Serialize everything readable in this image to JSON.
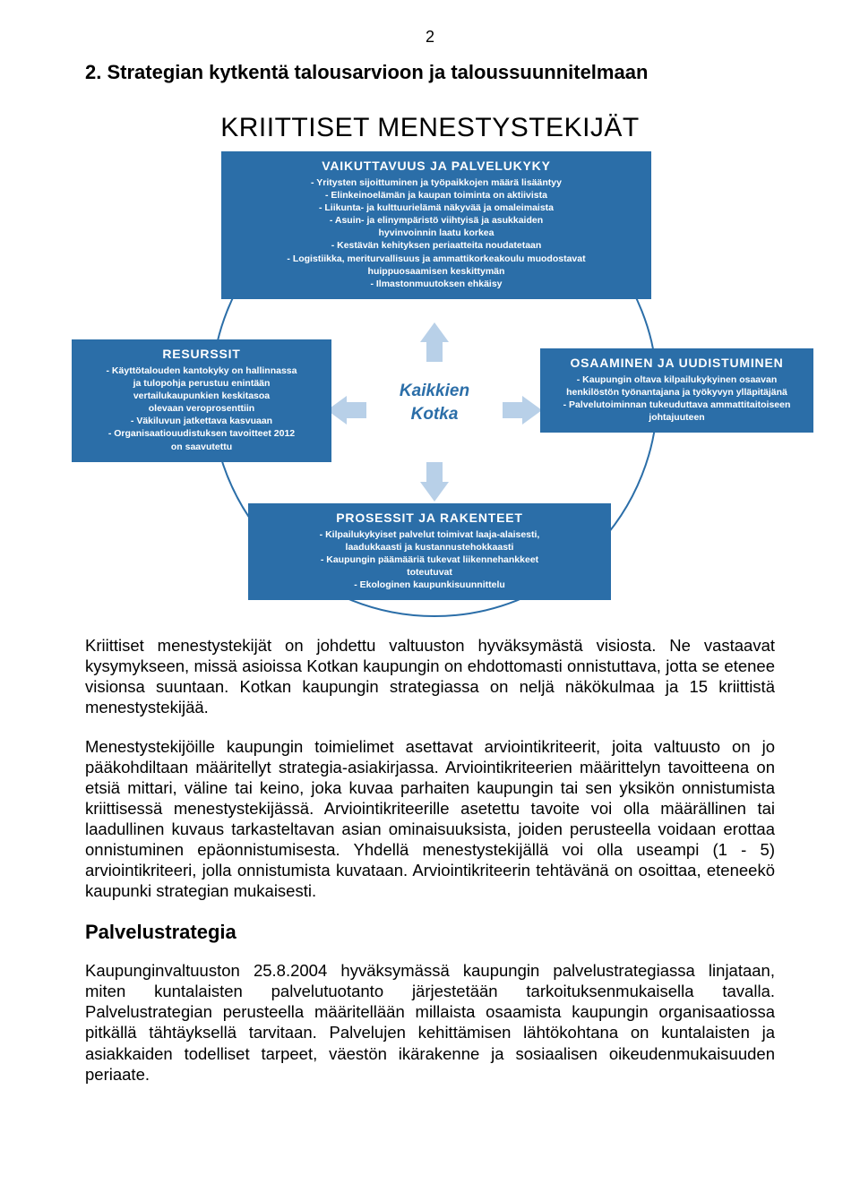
{
  "page_number": "2",
  "section_heading": "2.   Strategian kytkentä talousarvioon ja taloussuunnitelmaan",
  "diagram": {
    "title": "KRIITTISET MENESTYSTEKIJÄT",
    "center": {
      "line1": "Kaikkien",
      "line2": "Kotka"
    },
    "top": {
      "title": "VAIKUTTAVUUS JA PALVELUKYKY",
      "lines": [
        "- Yritysten sijoittuminen ja työpaikkojen määrä lisääntyy",
        "- Elinkeinoelämän ja kaupan toiminta on aktiivista",
        "- Liikunta- ja kulttuurielämä näkyvää ja omaleimaista",
        "- Asuin- ja elinympäristö viihtyisä ja asukkaiden",
        "hyvinvoinnin laatu korkea",
        "- Kestävän kehityksen periaatteita noudatetaan",
        "- Logistiikka, meriturvallisuus ja ammattikorkeakoulu muodostavat",
        "huippuosaamisen keskittymän",
        "- Ilmastonmuutoksen ehkäisy"
      ]
    },
    "left": {
      "title": "RESURSSIT",
      "lines": [
        "- Käyttötalouden kantokyky on hallinnassa",
        "ja tulopohja perustuu enintään",
        "vertailukaupunkien keskitasoa",
        "olevaan veroprosenttiin",
        "- Väkiluvun jatkettava kasvuaan",
        "- Organisaatiouudistuksen tavoitteet 2012",
        "on saavutettu"
      ]
    },
    "right": {
      "title": "OSAAMINEN JA UUDISTUMINEN",
      "lines": [
        "- Kaupungin oltava kilpailukykyinen osaavan",
        "henkilöstön työnantajana ja työkyvyn ylläpitäjänä",
        "- Palvelutoiminnan tukeuduttava ammattitaitoiseen",
        "johtajuuteen"
      ]
    },
    "bottom": {
      "title": "PROSESSIT JA RAKENTEET",
      "lines": [
        "- Kilpailukykyiset palvelut toimivat laaja-alaisesti,",
        "laadukkaasti ja kustannustehokkaasti",
        "- Kaupungin päämääriä tukevat liikennehankkeet",
        "toteutuvat",
        "- Ekologinen kaupunkisuunnittelu"
      ]
    }
  },
  "paragraphs": {
    "p1": "Kriittiset menestystekijät on johdettu valtuuston hyväksymästä visiosta. Ne vastaavat kysymykseen, missä asioissa Kotkan kaupungin on ehdottomasti onnistuttava, jotta se etenee visionsa suuntaan. Kotkan kaupungin strategiassa on neljä näkökulmaa ja 15 kriittistä menestystekijää.",
    "p2": "Menestystekijöille kaupungin toimielimet asettavat arviointikriteerit, joita valtuusto on jo pääkohdiltaan määritellyt strategia-asiakirjassa. Arviointikriteerien määrittelyn tavoitteena on etsiä mittari, väline tai keino, joka kuvaa parhaiten kaupungin tai sen yksikön onnistumista kriittisessä menestystekijässä. Arviointikriteerille asetettu tavoite voi olla määrällinen tai laadullinen kuvaus tarkasteltavan asian ominaisuuksista, joiden perusteella voidaan erottaa onnistuminen epäonnistumisesta. Yhdellä menestystekijällä voi olla useampi (1 - 5) arviointikriteeri, jolla onnistumista kuvataan. Arviointikriteerin tehtävänä on osoittaa, eteneekö kaupunki strategian mukaisesti.",
    "p3": "Kaupunginvaltuuston 25.8.2004 hyväksymässä kaupungin palvelustrategiassa linjataan, miten kuntalaisten palvelutuotanto järjestetään tarkoituksenmukaisella tavalla. Palvelustrategian perusteella määritellään millaista osaamista kaupungin organisaatiossa pitkällä tähtäyksellä tarvitaan. Palvelujen kehittämisen lähtökohtana on kuntalaisten ja asiakkaiden todelliset tarpeet, väestön ikärakenne ja sosiaalisen oikeudenmukaisuuden periaate."
  },
  "subheading": "Palvelustrategia"
}
